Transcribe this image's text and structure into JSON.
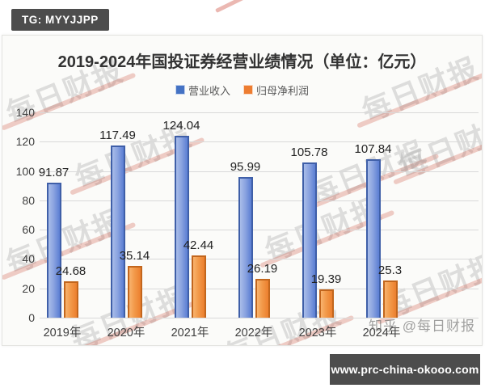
{
  "badge": {
    "text": "TG: MYYJJPP"
  },
  "watermark": {
    "text": "每日财报",
    "zhihu_credit": "知乎 @每日财报"
  },
  "footer": {
    "url": "www.prc-china-okooo.com"
  },
  "chart_data": {
    "type": "bar",
    "title": "2019-2024年国投证券经营业绩情况（单位：亿元）",
    "categories": [
      "2019年",
      "2020年",
      "2021年",
      "2022年",
      "2023年",
      "2024年"
    ],
    "series": [
      {
        "name": "营业收入",
        "color": "#4472c4",
        "values": [
          91.87,
          117.49,
          124.04,
          95.99,
          105.78,
          107.84
        ]
      },
      {
        "name": "归母净利润",
        "color": "#ed7d31",
        "values": [
          24.68,
          35.14,
          42.44,
          26.19,
          19.39,
          25.3
        ]
      }
    ],
    "ylim": [
      0,
      140
    ],
    "yticks": [
      0,
      20,
      40,
      60,
      80,
      100,
      120,
      140
    ],
    "grid": true,
    "legend_position": "top"
  }
}
